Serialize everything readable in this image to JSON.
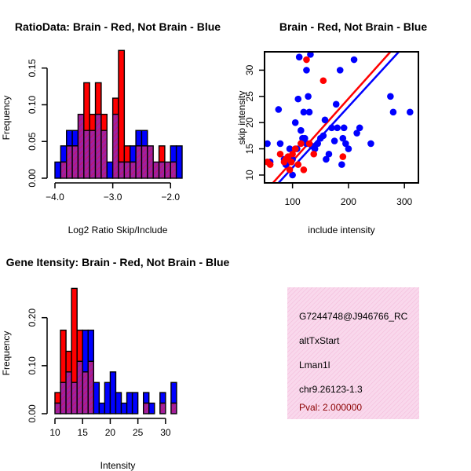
{
  "chart_data": [
    {
      "id": "ratio-hist",
      "type": "bar",
      "title": "RatioData: Brain - Red, Not Brain - Blue",
      "xlabel": "Log2 Ratio Skip/Include",
      "ylabel": "Frequency",
      "xlim": [
        -4.0,
        -1.8
      ],
      "ylim": [
        0,
        0.17
      ],
      "xticks": [
        -4.0,
        -3.0,
        -2.0
      ],
      "xtick_labels": [
        "−4.0",
        "−3.0",
        "−2.0"
      ],
      "yticks": [
        0.0,
        0.05,
        0.1,
        0.15
      ],
      "ytick_labels": [
        "0.00",
        "0.05",
        "0.10",
        "0.15"
      ],
      "bin_edges": [
        -4.0,
        -3.9,
        -3.8,
        -3.7,
        -3.6,
        -3.5,
        -3.4,
        -3.3,
        -3.2,
        -3.1,
        -3.0,
        -2.9,
        -2.8,
        -2.7,
        -2.6,
        -2.5,
        -2.4,
        -2.3,
        -2.2,
        -2.1,
        -2.0,
        -1.9,
        -1.8
      ],
      "series": [
        {
          "name": "Brain",
          "color": "#ff0000",
          "values": [
            0,
            0.022,
            0.044,
            0.044,
            0.087,
            0.13,
            0.087,
            0.13,
            0.087,
            0,
            0.109,
            0.174,
            0.044,
            0.022,
            0.044,
            0.044,
            0.044,
            0.022,
            0.044,
            0.022,
            0.022,
            0
          ]
        },
        {
          "name": "Not Brain",
          "color": "#0000ff",
          "values": [
            0.022,
            0.044,
            0.065,
            0.065,
            0.087,
            0.065,
            0.065,
            0.087,
            0.065,
            0.022,
            0.087,
            0.022,
            0.022,
            0.044,
            0.065,
            0.065,
            0.044,
            0.022,
            0.022,
            0.022,
            0.044,
            0.044
          ]
        }
      ]
    },
    {
      "id": "intensity-scatter",
      "type": "scatter",
      "title": "Brain - Red, Not Brain - Blue",
      "xlabel": "include intensity",
      "ylabel": "skip intensity",
      "xlim": [
        50,
        325
      ],
      "ylim": [
        8.5,
        33.5
      ],
      "xticks": [
        100,
        200,
        300
      ],
      "xtick_labels": [
        "100",
        "200",
        "300"
      ],
      "yticks": [
        10,
        15,
        20,
        25,
        30
      ],
      "ytick_labels": [
        "10",
        "15",
        "20",
        "25",
        "30"
      ],
      "series": [
        {
          "name": "Brain",
          "color": "#ff0000",
          "points": [
            [
              55,
              12.5
            ],
            [
              60,
              12
            ],
            [
              78,
              14
            ],
            [
              85,
              12.5
            ],
            [
              88,
              13
            ],
            [
              92,
              13.5
            ],
            [
              95,
              11
            ],
            [
              98,
              12.5
            ],
            [
              100,
              14
            ],
            [
              105,
              15
            ],
            [
              110,
              12
            ],
            [
              115,
              16
            ],
            [
              120,
              11
            ],
            [
              125,
              32
            ],
            [
              130,
              16
            ],
            [
              138,
              14
            ],
            [
              155,
              28
            ],
            [
              190,
              13.5
            ]
          ]
        },
        {
          "name": "Not Brain",
          "color": "#0000ff",
          "points": [
            [
              55,
              16
            ],
            [
              60,
              12.5
            ],
            [
              75,
              22.5
            ],
            [
              78,
              16
            ],
            [
              85,
              13
            ],
            [
              88,
              12
            ],
            [
              95,
              15
            ],
            [
              100,
              10
            ],
            [
              100,
              13
            ],
            [
              105,
              20
            ],
            [
              108,
              15
            ],
            [
              110,
              24.5
            ],
            [
              112,
              32.5
            ],
            [
              115,
              18.5
            ],
            [
              118,
              17
            ],
            [
              120,
              22
            ],
            [
              122,
              17
            ],
            [
              125,
              16
            ],
            [
              125,
              30
            ],
            [
              128,
              25
            ],
            [
              130,
              22
            ],
            [
              132,
              33
            ],
            [
              135,
              15.5
            ],
            [
              140,
              15
            ],
            [
              145,
              16
            ],
            [
              150,
              17
            ],
            [
              155,
              17.5
            ],
            [
              158,
              20.5
            ],
            [
              160,
              13
            ],
            [
              165,
              14
            ],
            [
              170,
              19
            ],
            [
              175,
              16.5
            ],
            [
              178,
              23.5
            ],
            [
              180,
              19
            ],
            [
              185,
              30
            ],
            [
              188,
              12
            ],
            [
              190,
              17
            ],
            [
              192,
              19
            ],
            [
              195,
              16
            ],
            [
              200,
              15
            ],
            [
              210,
              32
            ],
            [
              215,
              18
            ],
            [
              220,
              19
            ],
            [
              240,
              16
            ],
            [
              275,
              25
            ],
            [
              280,
              22
            ],
            [
              310,
              22
            ]
          ]
        }
      ],
      "fit_lines": [
        {
          "name": "Brain fit",
          "color": "#ff0000",
          "from": [
            65,
            8.5
          ],
          "to": [
            275,
            33.5
          ]
        },
        {
          "name": "Not Brain fit",
          "color": "#0000ff",
          "from": [
            75,
            8.5
          ],
          "to": [
            290,
            33.5
          ]
        }
      ]
    },
    {
      "id": "intensity-hist",
      "type": "bar",
      "title": "Gene Itensity: Brain - Red, Not Brain - Blue",
      "xlabel": "Intensity",
      "ylabel": "Frequency",
      "xlim": [
        10,
        33
      ],
      "ylim": [
        0,
        0.26
      ],
      "xticks": [
        10,
        15,
        20,
        25,
        30
      ],
      "xtick_labels": [
        "10",
        "15",
        "20",
        "25",
        "30"
      ],
      "yticks": [
        0.0,
        0.1,
        0.2
      ],
      "ytick_labels": [
        "0.00",
        "0.10",
        "0.20"
      ],
      "bin_edges": [
        10,
        11,
        12,
        13,
        14,
        15,
        16,
        17,
        18,
        19,
        20,
        21,
        22,
        23,
        24,
        25,
        26,
        27,
        28,
        29,
        30,
        31,
        32,
        33
      ],
      "series": [
        {
          "name": "Brain",
          "color": "#ff0000",
          "values": [
            0.044,
            0.174,
            0.13,
            0.261,
            0.174,
            0.087,
            0.109,
            0,
            0,
            0,
            0,
            0,
            0,
            0,
            0,
            0,
            0.022,
            0,
            0,
            0.022,
            0,
            0.022,
            0
          ]
        },
        {
          "name": "Not Brain",
          "color": "#0000ff",
          "values": [
            0.022,
            0.065,
            0.087,
            0.065,
            0.109,
            0.174,
            0.174,
            0.065,
            0.022,
            0.065,
            0.087,
            0.044,
            0.022,
            0.044,
            0.044,
            0,
            0.044,
            0.022,
            0,
            0.044,
            0,
            0.065,
            0
          ]
        }
      ]
    }
  ],
  "info_panel": {
    "lines": [
      "G7244748@J946766_RC",
      "altTxStart",
      "Lman1l",
      "chr9.26123-1.3"
    ],
    "pval": "Pval: 2.000000"
  },
  "colors": {
    "overlap": "#a020a0",
    "brain": "#ff0000",
    "notbrain": "#0000ff",
    "panel_bg": "#f9d8ec",
    "pval": "#8b0000"
  }
}
